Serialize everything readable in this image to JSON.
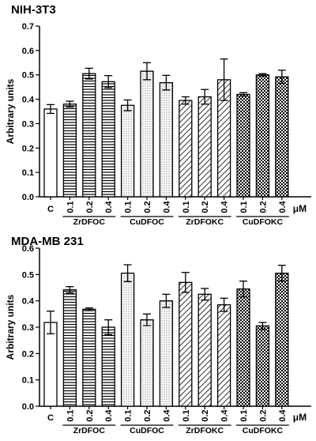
{
  "chart_data": [
    {
      "type": "bar",
      "title": "NIH-3T3",
      "ylabel": "Arbitrary units",
      "xlabel": "",
      "ylim": [
        0,
        0.7
      ],
      "yticks": [
        "0.0",
        "0.1",
        "0.2",
        "0.3",
        "0.4",
        "0.5",
        "0.6",
        "0.7"
      ],
      "unit": "μM",
      "groups": [
        "ZrDFOC",
        "CuDFOC",
        "ZrDFOKC",
        "CuDFOKC"
      ],
      "categories": [
        "C",
        "0.1",
        "0.2",
        "0.4",
        "0.1",
        "0.2",
        "0.4",
        "0.1",
        "0.2",
        "0.4",
        "0.1",
        "0.2",
        "0.4"
      ],
      "values": [
        0.36,
        0.38,
        0.505,
        0.472,
        0.375,
        0.515,
        0.468,
        0.395,
        0.41,
        0.48,
        0.42,
        0.5,
        0.492
      ],
      "errors": [
        0.018,
        0.012,
        0.022,
        0.025,
        0.022,
        0.035,
        0.03,
        0.015,
        0.03,
        0.085,
        0.007,
        0.005,
        0.027
      ],
      "patterns": [
        "open",
        "hlines",
        "hlines",
        "hlines",
        "dots",
        "dots",
        "dots",
        "diag",
        "diag",
        "diag",
        "checker",
        "checker",
        "checker"
      ]
    },
    {
      "type": "bar",
      "title": "MDA-MB 231",
      "ylabel": "Arbitrary units",
      "xlabel": "",
      "ylim": [
        0,
        0.6
      ],
      "yticks": [
        "0.0",
        "0.1",
        "0.2",
        "0.3",
        "0.4",
        "0.5",
        "0.6"
      ],
      "unit": "μM",
      "groups": [
        "ZrDFOC",
        "CuDFOC",
        "ZrDFOKC",
        "CuDFOKC"
      ],
      "categories": [
        "C",
        "0.1",
        "0.2",
        "0.4",
        "0.1",
        "0.2",
        "0.4",
        "0.1",
        "0.2",
        "0.4",
        "0.1",
        "0.2",
        "0.4"
      ],
      "values": [
        0.318,
        0.442,
        0.368,
        0.3,
        0.505,
        0.328,
        0.4,
        0.47,
        0.425,
        0.385,
        0.445,
        0.305,
        0.505
      ],
      "errors": [
        0.043,
        0.012,
        0.005,
        0.028,
        0.032,
        0.022,
        0.025,
        0.038,
        0.022,
        0.025,
        0.03,
        0.013,
        0.03
      ],
      "patterns": [
        "open",
        "hlines",
        "hlines",
        "hlines",
        "dots",
        "dots",
        "dots",
        "diag",
        "diag",
        "diag",
        "checker",
        "checker",
        "checker"
      ]
    }
  ]
}
